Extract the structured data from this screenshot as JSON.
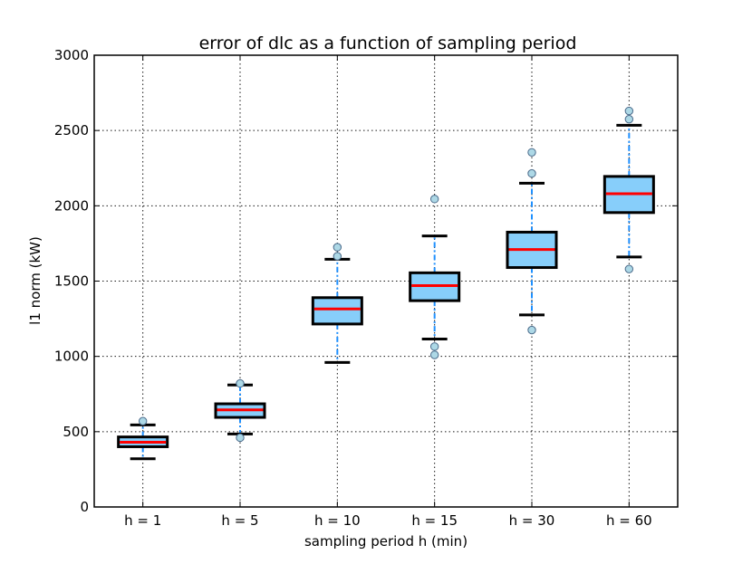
{
  "chart_data": {
    "type": "boxplot",
    "title": "error of dlc as a function of sampling period",
    "xlabel": "sampling period h (min)",
    "ylabel": "l1 norm (kW)",
    "ylim": [
      0,
      3000
    ],
    "yticks": [
      0,
      500,
      1000,
      1500,
      2000,
      2500,
      3000
    ],
    "grid": true,
    "categories": [
      "h = 1",
      "h = 5",
      "h = 10",
      "h = 15",
      "h = 30",
      "h = 60"
    ],
    "boxes": [
      {
        "label": "h = 1",
        "whisker_low": 320,
        "q1": 400,
        "median": 430,
        "q3": 465,
        "whisker_high": 545,
        "outliers": [
          570
        ]
      },
      {
        "label": "h = 5",
        "whisker_low": 485,
        "q1": 595,
        "median": 645,
        "q3": 685,
        "whisker_high": 810,
        "outliers": [
          820,
          460
        ]
      },
      {
        "label": "h = 10",
        "whisker_low": 960,
        "q1": 1215,
        "median": 1315,
        "q3": 1390,
        "whisker_high": 1645,
        "outliers": [
          1725,
          1665
        ]
      },
      {
        "label": "h = 15",
        "whisker_low": 1115,
        "q1": 1370,
        "median": 1470,
        "q3": 1555,
        "whisker_high": 1800,
        "outliers": [
          2045,
          1065,
          1010
        ]
      },
      {
        "label": "h = 30",
        "whisker_low": 1275,
        "q1": 1590,
        "median": 1710,
        "q3": 1825,
        "whisker_high": 2150,
        "outliers": [
          2355,
          2215,
          1175
        ]
      },
      {
        "label": "h = 60",
        "whisker_low": 1660,
        "q1": 1955,
        "median": 2080,
        "q3": 2195,
        "whisker_high": 2535,
        "outliers": [
          2630,
          2575,
          1580
        ]
      }
    ],
    "colors": {
      "box_fill": "#87cefa",
      "box_edge": "#000000",
      "median": "#ff0000",
      "whisker": "#1e90ff",
      "cap": "#000000",
      "outlier_fill": "#add8e6",
      "outlier_edge": "#4a6a8a"
    }
  }
}
